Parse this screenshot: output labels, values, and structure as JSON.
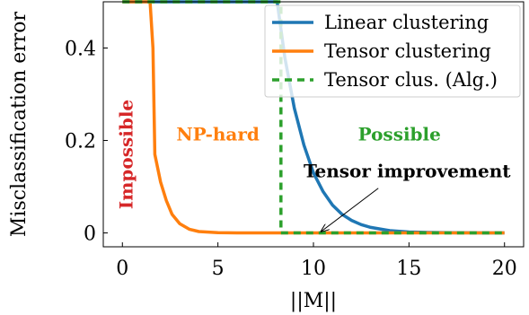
{
  "chart_data": {
    "type": "line",
    "xlabel": "||M||",
    "ylabel": "Misclassification error",
    "xlim": [
      -1,
      21
    ],
    "ylim": [
      -0.03,
      0.5
    ],
    "xticks": [
      0,
      5,
      10,
      15,
      20
    ],
    "yticks": [
      0,
      0.2,
      0.4
    ],
    "xtick_labels": [
      "0",
      "5",
      "10",
      "15",
      "20"
    ],
    "ytick_labels": [
      "0",
      "0.2",
      "0.4"
    ],
    "grid": false,
    "legend_position": "top-right",
    "series": [
      {
        "name": "Linear clustering",
        "color": "#1f77b4",
        "style": "solid",
        "x": [
          0,
          1,
          2,
          3,
          4,
          5,
          6,
          7,
          8.1,
          8.5,
          9,
          9.5,
          10,
          10.5,
          11,
          11.5,
          12,
          12.5,
          13,
          14,
          15,
          16,
          17,
          18,
          19,
          20
        ],
        "y": [
          0.5,
          0.5,
          0.5,
          0.5,
          0.5,
          0.5,
          0.5,
          0.5,
          0.5,
          0.38,
          0.27,
          0.19,
          0.13,
          0.09,
          0.06,
          0.04,
          0.027,
          0.018,
          0.012,
          0.005,
          0.002,
          0.001,
          0.0005,
          0.0002,
          0,
          0
        ]
      },
      {
        "name": "Tensor clustering",
        "color": "#ff7f0e",
        "style": "solid",
        "x": [
          0,
          1,
          1.45,
          1.6,
          1.7,
          2,
          2.3,
          2.6,
          3,
          3.5,
          4,
          5,
          6,
          7,
          8,
          10,
          12,
          14,
          16,
          18,
          20
        ],
        "y": [
          0.5,
          0.5,
          0.5,
          0.4,
          0.17,
          0.11,
          0.07,
          0.04,
          0.02,
          0.008,
          0.003,
          0.0005,
          0,
          0,
          0,
          0,
          0,
          0,
          0,
          0,
          0
        ]
      },
      {
        "name": "Tensor clus. (Alg.)",
        "color": "#2ca02c",
        "style": "dashed",
        "x": [
          0,
          8.3,
          8.3,
          20
        ],
        "y": [
          0.5,
          0.5,
          0,
          0
        ]
      }
    ],
    "annotations": [
      {
        "text": "Impossible",
        "color": "#d62728",
        "x": 0.2,
        "y": 0.17,
        "rotation": -90
      },
      {
        "text": "NP-hard",
        "color": "#ff7f0e",
        "x": 5,
        "y": 0.2
      },
      {
        "text": "Possible",
        "color": "#2ca02c",
        "x": 14.5,
        "y": 0.2
      },
      {
        "text": "Tensor improvement",
        "color": "#000000",
        "x": 14.9,
        "y": 0.12,
        "arrow_to": [
          10.4,
          0.003
        ]
      }
    ]
  }
}
